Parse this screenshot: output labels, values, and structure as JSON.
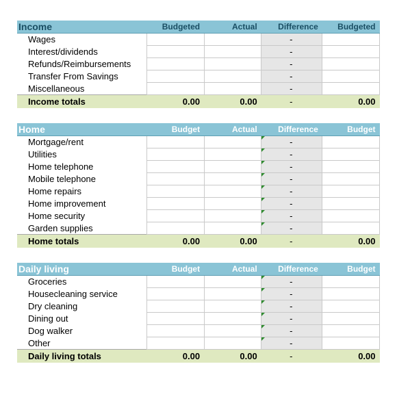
{
  "colors": {
    "header_bg": "#8ac4d6",
    "header_text_dark": "#1a4e63",
    "header_text_light": "#ffffff",
    "diff_bg": "#e6e6e6",
    "totals_bg": "#dfe9c0",
    "cell_border": "#c9c9c9",
    "tick": "#2e8b2e",
    "body_bg": "#ffffff"
  },
  "columns": {
    "budgeted": "Budgeted",
    "actual": "Actual",
    "difference": "Difference",
    "budgeted2": "Budgeted",
    "budget": "Budget",
    "budget2": "Budget"
  },
  "dash": "-",
  "zero": "0.00",
  "sections": [
    {
      "id": "income",
      "title": "Income",
      "header_style": "dark",
      "col_labels": [
        "budgeted",
        "actual",
        "difference",
        "budgeted2"
      ],
      "rows": [
        {
          "label": "Wages"
        },
        {
          "label": "Interest/dividends"
        },
        {
          "label": "Refunds/Reimbursements"
        },
        {
          "label": "Transfer From Savings"
        },
        {
          "label": "Miscellaneous"
        }
      ],
      "totals_label": "Income totals",
      "totals": {
        "c1": "0.00",
        "c2": "0.00",
        "c3": "-",
        "c4": "0.00"
      },
      "show_tick": false
    },
    {
      "id": "home",
      "title": "Home",
      "header_style": "light",
      "col_labels": [
        "budget",
        "actual",
        "difference",
        "budget2"
      ],
      "rows": [
        {
          "label": "Mortgage/rent"
        },
        {
          "label": "Utilities"
        },
        {
          "label": "Home telephone"
        },
        {
          "label": "Mobile telephone"
        },
        {
          "label": "Home repairs"
        },
        {
          "label": "Home improvement"
        },
        {
          "label": "Home security"
        },
        {
          "label": "Garden supplies"
        }
      ],
      "totals_label": "Home totals",
      "totals": {
        "c1": "0.00",
        "c2": "0.00",
        "c3": "-",
        "c4": "0.00"
      },
      "show_tick": true
    },
    {
      "id": "daily",
      "title": "Daily living",
      "header_style": "light",
      "col_labels": [
        "budget",
        "actual",
        "difference",
        "budget2"
      ],
      "rows": [
        {
          "label": "Groceries"
        },
        {
          "label": "Housecleaning service"
        },
        {
          "label": "Dry cleaning"
        },
        {
          "label": "Dining out"
        },
        {
          "label": "Dog walker"
        },
        {
          "label": "Other"
        }
      ],
      "totals_label": "Daily living totals",
      "totals": {
        "c1": "0.00",
        "c2": "0.00",
        "c3": "-",
        "c4": "0.00"
      },
      "show_tick": true
    }
  ]
}
